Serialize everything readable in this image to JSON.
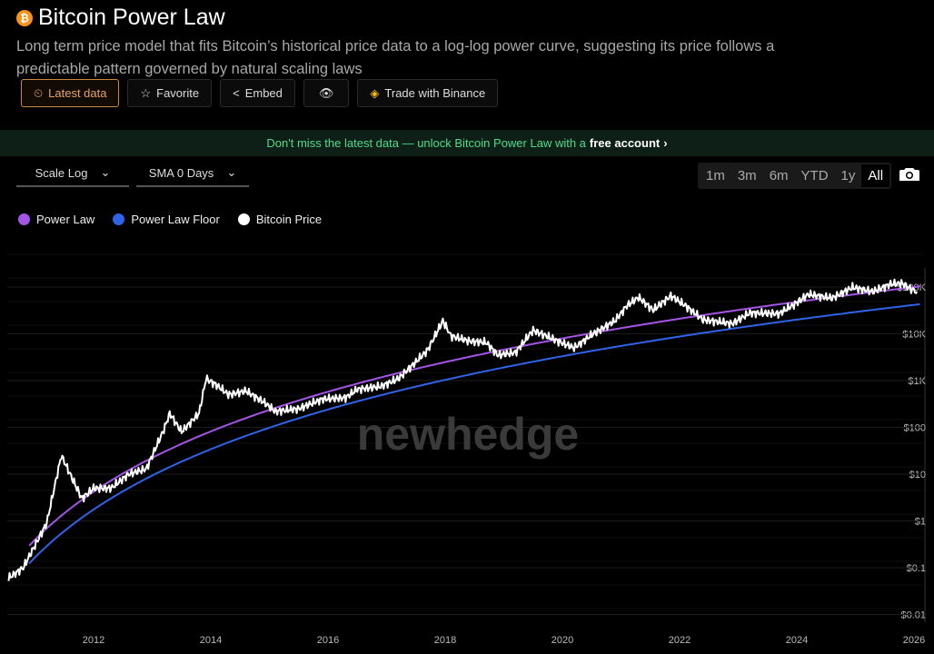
{
  "header": {
    "title": "Bitcoin Power Law",
    "description": "Long term price model that fits Bitcoin’s historical price data to a log-log power curve, suggesting its price follows a predictable pattern governed by natural scaling laws"
  },
  "buttons": {
    "latest": "Latest data",
    "favorite": "Favorite",
    "embed": "Embed",
    "trade": "Trade with Binance"
  },
  "banner": {
    "text": "Don't miss the latest data — unlock Bitcoin Power Law with a",
    "link": "free account"
  },
  "controls": {
    "scale": "Scale Log",
    "sma": "SMA 0 Days",
    "ranges": [
      "1m",
      "3m",
      "6m",
      "YTD",
      "1y",
      "All"
    ],
    "active_range": "All"
  },
  "watermark": "newhedge",
  "colors": {
    "power_law": "#a455e8",
    "floor": "#2f63e8",
    "price": "#ffffff",
    "accent": "#e6a35d",
    "banner": "#4ddc8c"
  },
  "chart_data": {
    "type": "line",
    "legend": [
      "Power Law",
      "Power Law Floor",
      "Bitcoin Price"
    ],
    "legend_placement": "top-left",
    "y_scale": "log",
    "ylim": [
      0.01,
      200000
    ],
    "y_ticks": [
      {
        "v": 100000,
        "label": "$100K"
      },
      {
        "v": 10000,
        "label": "$10K"
      },
      {
        "v": 1000,
        "label": "$1K"
      },
      {
        "v": 100,
        "label": "$100"
      },
      {
        "v": 10,
        "label": "$10"
      },
      {
        "v": 1,
        "label": "$1"
      },
      {
        "v": 0.1,
        "label": "$0.1"
      },
      {
        "v": 0.01,
        "label": "$0.01"
      }
    ],
    "xlim": [
      2010.6,
      2026.15
    ],
    "x_ticks": [
      "2012",
      "2014",
      "2016",
      "2018",
      "2020",
      "2022",
      "2024",
      "2026"
    ],
    "power_law": {
      "formula": "10^-17 * days^5.8",
      "start": 2010.9,
      "end": 2026.1,
      "coef_log10": -17,
      "exponent": 5.8
    },
    "floor": {
      "coef_log10": -17.38,
      "exponent": 5.8,
      "start": 2010.9,
      "end": 2026.1
    },
    "price": [
      [
        2010.55,
        0.06
      ],
      [
        2010.8,
        0.1
      ],
      [
        2011.0,
        0.3
      ],
      [
        2011.2,
        0.9
      ],
      [
        2011.45,
        25
      ],
      [
        2011.6,
        10
      ],
      [
        2011.8,
        3
      ],
      [
        2012.0,
        5
      ],
      [
        2012.3,
        5
      ],
      [
        2012.6,
        10
      ],
      [
        2012.9,
        13
      ],
      [
        2013.2,
        90
      ],
      [
        2013.3,
        200
      ],
      [
        2013.5,
        80
      ],
      [
        2013.8,
        200
      ],
      [
        2013.92,
        1100
      ],
      [
        2014.1,
        800
      ],
      [
        2014.3,
        500
      ],
      [
        2014.6,
        600
      ],
      [
        2014.9,
        350
      ],
      [
        2015.1,
        220
      ],
      [
        2015.5,
        250
      ],
      [
        2015.9,
        400
      ],
      [
        2016.3,
        430
      ],
      [
        2016.5,
        650
      ],
      [
        2016.9,
        750
      ],
      [
        2017.2,
        1100
      ],
      [
        2017.5,
        2500
      ],
      [
        2017.7,
        4500
      ],
      [
        2017.96,
        19000
      ],
      [
        2018.1,
        9000
      ],
      [
        2018.4,
        7000
      ],
      [
        2018.7,
        6500
      ],
      [
        2018.9,
        3500
      ],
      [
        2019.2,
        4000
      ],
      [
        2019.5,
        12000
      ],
      [
        2019.9,
        7200
      ],
      [
        2020.2,
        5000
      ],
      [
        2020.5,
        9500
      ],
      [
        2020.9,
        19000
      ],
      [
        2021.1,
        40000
      ],
      [
        2021.3,
        60000
      ],
      [
        2021.55,
        32000
      ],
      [
        2021.85,
        65000
      ],
      [
        2022.1,
        40000
      ],
      [
        2022.4,
        20000
      ],
      [
        2022.9,
        16500
      ],
      [
        2023.2,
        28000
      ],
      [
        2023.7,
        27000
      ],
      [
        2023.95,
        42000
      ],
      [
        2024.2,
        70000
      ],
      [
        2024.6,
        58000
      ],
      [
        2024.95,
        98000
      ],
      [
        2025.3,
        80000
      ],
      [
        2025.6,
        115000
      ],
      [
        2025.8,
        120000
      ],
      [
        2025.95,
        90000
      ],
      [
        2026.05,
        80000
      ]
    ]
  }
}
